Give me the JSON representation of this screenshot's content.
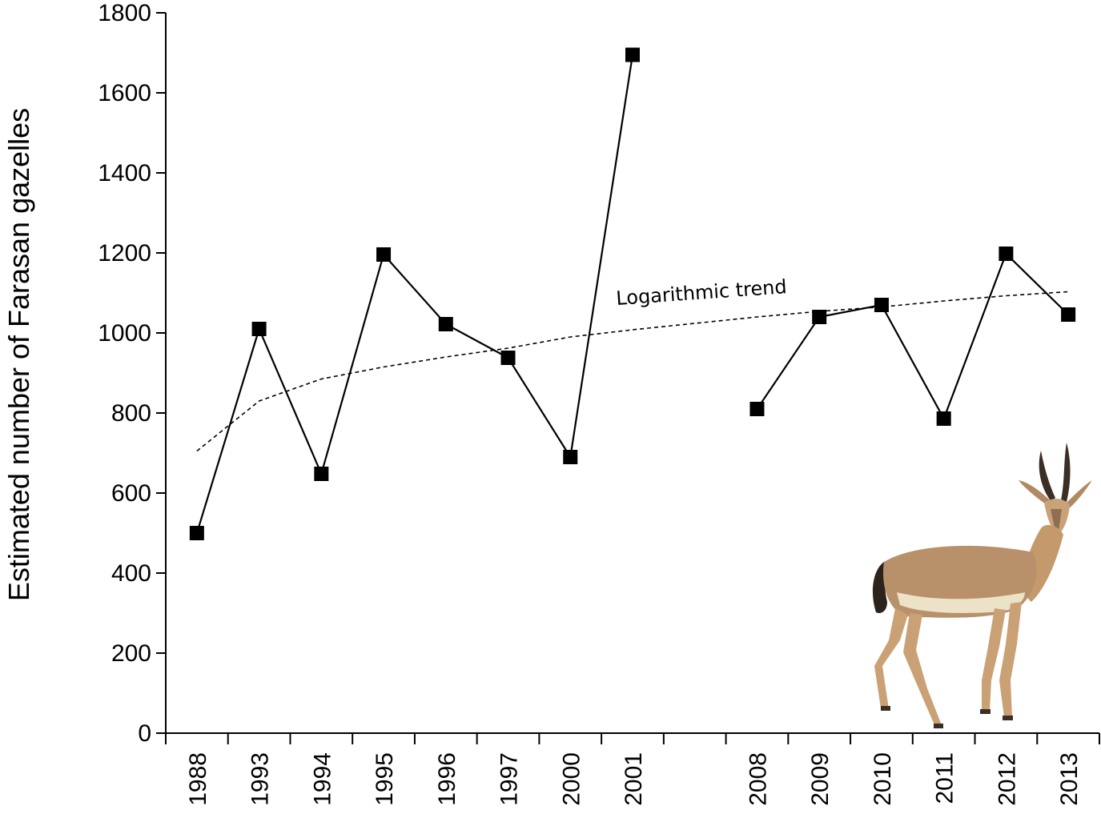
{
  "chart_data": {
    "type": "line",
    "categories": [
      "1988",
      "1993",
      "1994",
      "1995",
      "1996",
      "1997",
      "2000",
      "2001",
      "",
      "2008",
      "2009",
      "2010",
      "2011",
      "2012",
      "2013"
    ],
    "series": [
      {
        "values": [
          500,
          1010,
          648,
          1196,
          1022,
          938,
          690,
          1695,
          null,
          810,
          1040,
          1070,
          786,
          1198,
          1046
        ],
        "marker": "square",
        "color": "#000000"
      }
    ],
    "trendline": {
      "label": "Logarithmic trend",
      "type": "logarithmic",
      "style": "dashed",
      "values": [
        705,
        830,
        885,
        915,
        940,
        962,
        990,
        1008,
        1024,
        1040,
        1054,
        1065,
        1080,
        1093,
        1103
      ]
    },
    "ylabel": "Estimated number of Farasan gazelles",
    "xlabel": "",
    "ylim": [
      0,
      1800
    ],
    "yticks": [
      "0",
      "200",
      "400",
      "600",
      "800",
      "1000",
      "1200",
      "1400",
      "1600",
      "1800"
    ],
    "grid": false,
    "legend": "none",
    "image_inset": "gazelle illustration, bottom-right"
  }
}
